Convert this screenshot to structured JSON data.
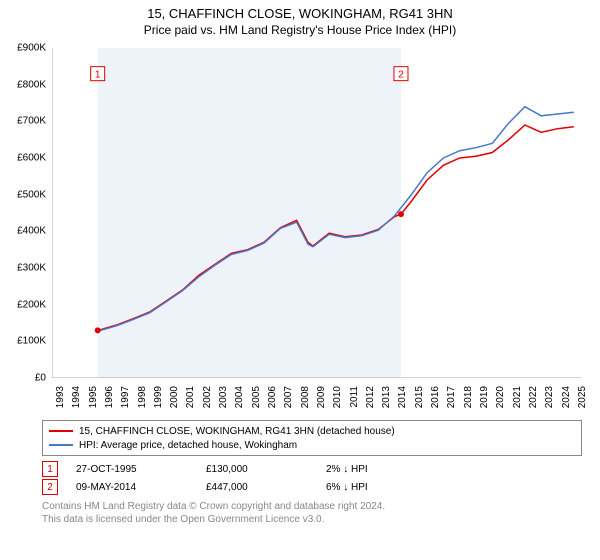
{
  "title": "15, CHAFFINCH CLOSE, WOKINGHAM, RG41 3HN",
  "subtitle": "Price paid vs. HM Land Registry's House Price Index (HPI)",
  "chart": {
    "type": "line",
    "background_color": "#ffffff",
    "grid_color": "#f0f0f0",
    "shade_color": "#eef3fa",
    "x_years": [
      1993,
      1994,
      1995,
      1996,
      1997,
      1998,
      1999,
      2000,
      2001,
      2002,
      2003,
      2004,
      2005,
      2006,
      2007,
      2008,
      2009,
      2010,
      2011,
      2012,
      2013,
      2014,
      2015,
      2016,
      2017,
      2018,
      2019,
      2020,
      2021,
      2022,
      2023,
      2024,
      2025
    ],
    "x_domain": [
      1993,
      2025.5
    ],
    "y_domain": [
      0,
      900000
    ],
    "y_ticks": [
      0,
      100000,
      200000,
      300000,
      400000,
      500000,
      600000,
      700000,
      800000,
      900000
    ],
    "y_tick_labels": [
      "£0",
      "£100K",
      "£200K",
      "£300K",
      "£400K",
      "£500K",
      "£600K",
      "£700K",
      "£800K",
      "£900K"
    ],
    "shade_range": [
      1995.8,
      2014.4
    ],
    "series": [
      {
        "id": "property",
        "color": "#e00000",
        "label": "15, CHAFFINCH CLOSE, WOKINGHAM, RG41 3HN (detached house)",
        "points": [
          [
            1995.8,
            130000
          ],
          [
            1996,
            132000
          ],
          [
            1997,
            145000
          ],
          [
            1998,
            162000
          ],
          [
            1999,
            180000
          ],
          [
            2000,
            210000
          ],
          [
            2001,
            240000
          ],
          [
            2002,
            280000
          ],
          [
            2003,
            310000
          ],
          [
            2004,
            340000
          ],
          [
            2005,
            350000
          ],
          [
            2006,
            370000
          ],
          [
            2007,
            410000
          ],
          [
            2008,
            430000
          ],
          [
            2008.7,
            370000
          ],
          [
            2009,
            360000
          ],
          [
            2010,
            395000
          ],
          [
            2011,
            385000
          ],
          [
            2012,
            390000
          ],
          [
            2013,
            405000
          ],
          [
            2014,
            440000
          ],
          [
            2014.4,
            447000
          ],
          [
            2015,
            480000
          ],
          [
            2016,
            540000
          ],
          [
            2017,
            580000
          ],
          [
            2018,
            600000
          ],
          [
            2019,
            605000
          ],
          [
            2020,
            615000
          ],
          [
            2021,
            650000
          ],
          [
            2022,
            690000
          ],
          [
            2023,
            670000
          ],
          [
            2024,
            680000
          ],
          [
            2025,
            685000
          ]
        ]
      },
      {
        "id": "hpi",
        "color": "#4878c8",
        "label": "HPI: Average price, detached house, Wokingham",
        "points": [
          [
            1995.8,
            128000
          ],
          [
            1996,
            130000
          ],
          [
            1997,
            143000
          ],
          [
            1998,
            160000
          ],
          [
            1999,
            178000
          ],
          [
            2000,
            208000
          ],
          [
            2001,
            238000
          ],
          [
            2002,
            276000
          ],
          [
            2003,
            308000
          ],
          [
            2004,
            337000
          ],
          [
            2005,
            348000
          ],
          [
            2006,
            368000
          ],
          [
            2007,
            408000
          ],
          [
            2008,
            425000
          ],
          [
            2008.7,
            365000
          ],
          [
            2009,
            358000
          ],
          [
            2010,
            392000
          ],
          [
            2011,
            383000
          ],
          [
            2012,
            388000
          ],
          [
            2013,
            403000
          ],
          [
            2014,
            442000
          ],
          [
            2015,
            498000
          ],
          [
            2016,
            560000
          ],
          [
            2017,
            600000
          ],
          [
            2018,
            620000
          ],
          [
            2019,
            628000
          ],
          [
            2020,
            640000
          ],
          [
            2021,
            695000
          ],
          [
            2022,
            740000
          ],
          [
            2023,
            715000
          ],
          [
            2024,
            720000
          ],
          [
            2025,
            725000
          ]
        ]
      }
    ],
    "markers": [
      {
        "n": "1",
        "x": 1995.8,
        "y": 130000,
        "flag_y": 830000
      },
      {
        "n": "2",
        "x": 2014.4,
        "y": 447000,
        "flag_y": 830000
      }
    ]
  },
  "legend": {
    "items": [
      {
        "color": "#e00000",
        "label": "15, CHAFFINCH CLOSE, WOKINGHAM, RG41 3HN (detached house)"
      },
      {
        "color": "#4878c8",
        "label": "HPI: Average price, detached house, Wokingham"
      }
    ]
  },
  "transactions": [
    {
      "n": "1",
      "color": "#e00000",
      "date": "27-OCT-1995",
      "price": "£130,000",
      "delta": "2% ↓ HPI"
    },
    {
      "n": "2",
      "color": "#e00000",
      "date": "09-MAY-2014",
      "price": "£447,000",
      "delta": "6% ↓ HPI"
    }
  ],
  "footer": {
    "line1": "Contains HM Land Registry data © Crown copyright and database right 2024.",
    "line2": "This data is licensed under the Open Government Licence v3.0."
  }
}
